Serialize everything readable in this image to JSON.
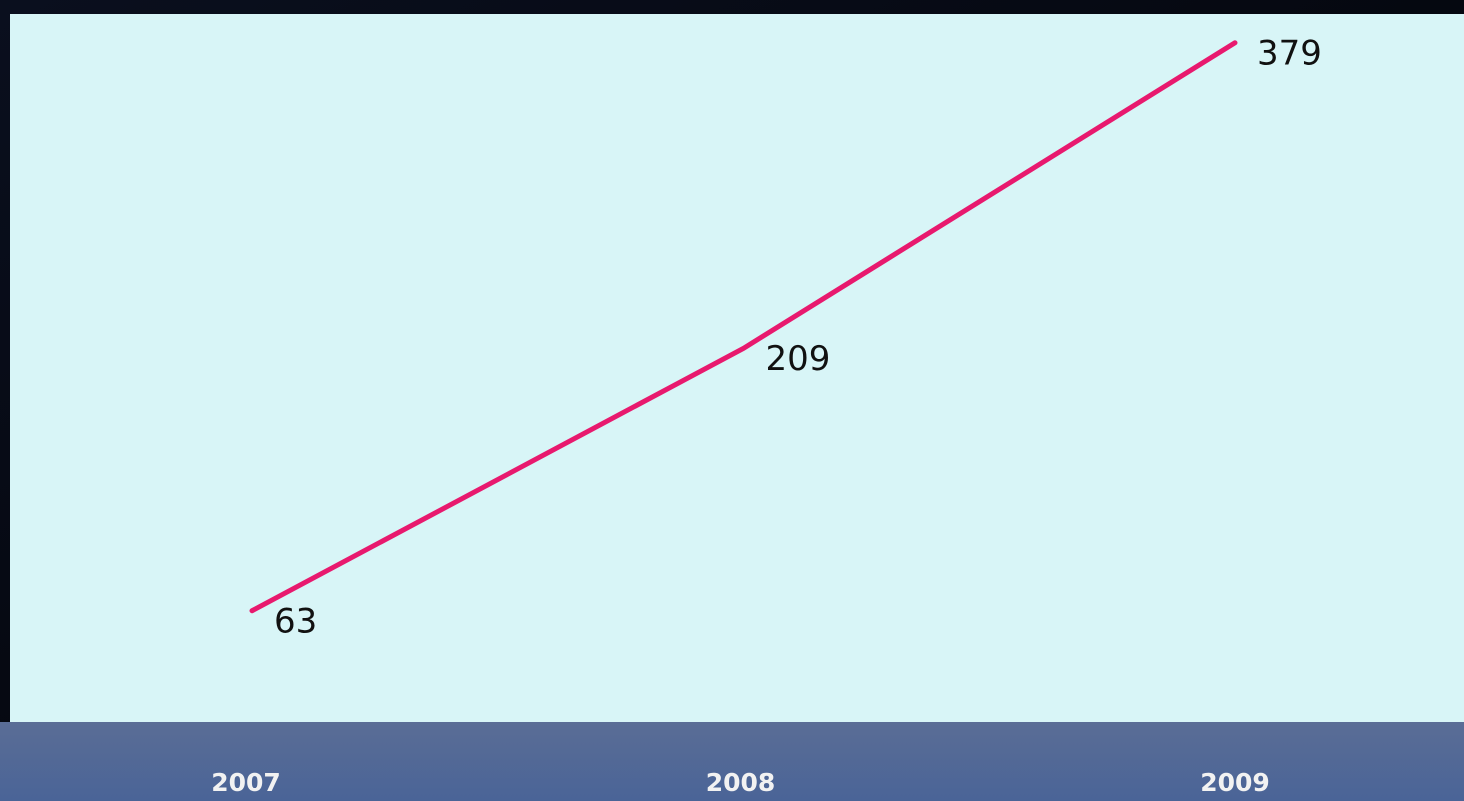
{
  "chart_data": {
    "type": "line",
    "categories": [
      "2007",
      "2008",
      "2009"
    ],
    "series": [
      {
        "color": "#e8196e",
        "values": [
          63,
          209,
          379
        ]
      }
    ],
    "ylim": [
      0,
      395
    ]
  }
}
